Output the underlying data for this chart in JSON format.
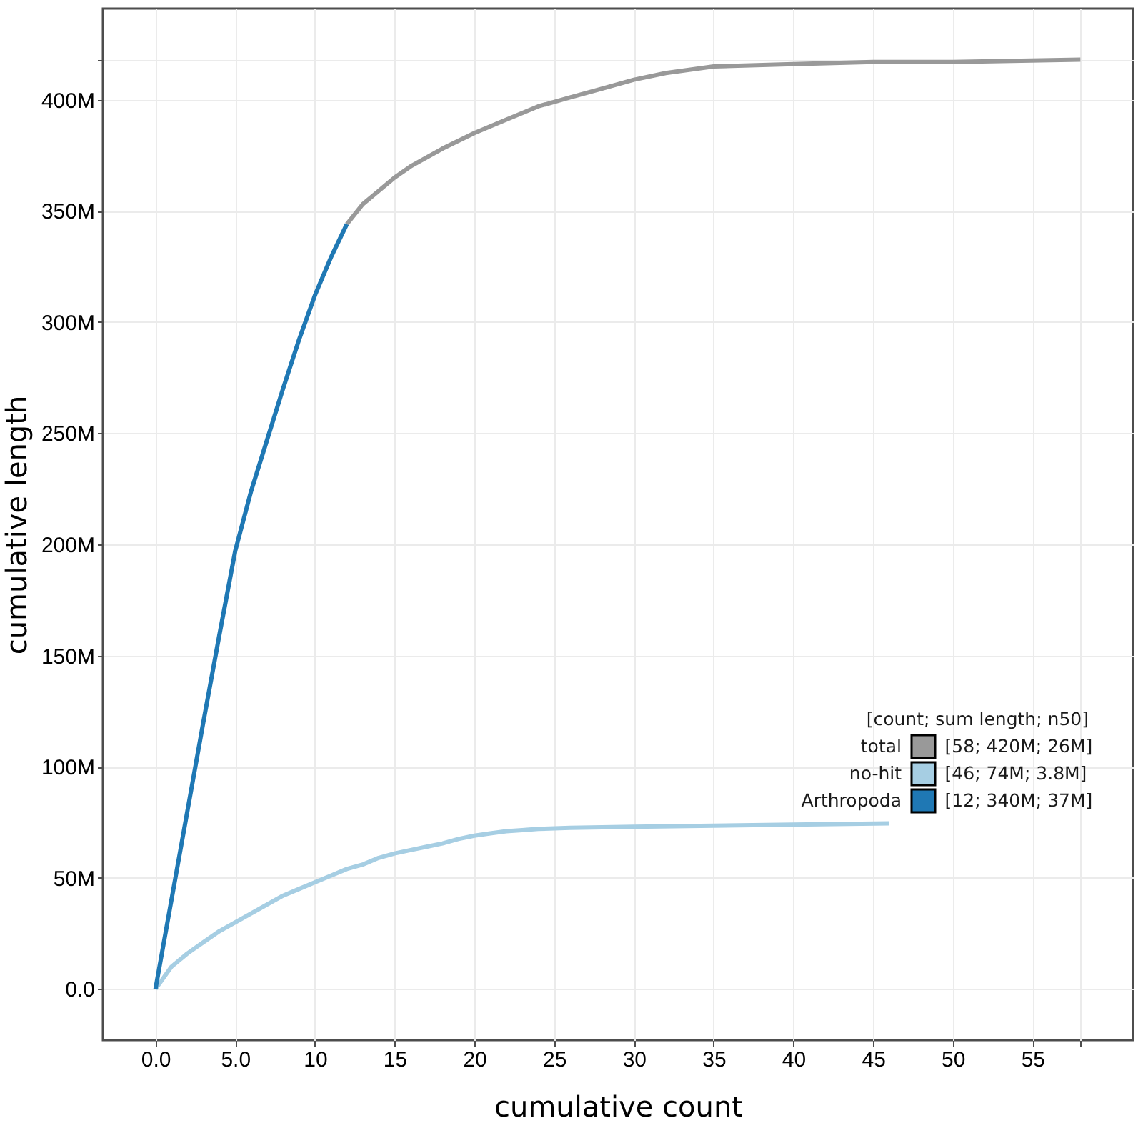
{
  "chart_data": {
    "type": "line",
    "xlabel": "cumulative count",
    "ylabel": "cumulative length",
    "legend_title": "[count; sum length; n50]",
    "annotations": [
      "[58; 420M; 26M]",
      "[46; 74M; 3.8M]",
      "[12; 340M; 37M]"
    ],
    "series": [
      {
        "name": "total",
        "color": "#999999",
        "x": [
          12,
          13,
          14,
          15,
          16,
          18,
          20,
          22,
          24,
          26,
          28,
          30,
          32,
          35,
          40,
          45,
          50,
          58
        ],
        "values": [
          344,
          353,
          359,
          365,
          370,
          378,
          385,
          391,
          397,
          401,
          405,
          409,
          412,
          415,
          416,
          417,
          417,
          418
        ]
      },
      {
        "name": "no-hit",
        "color": "#a6cee3",
        "x": [
          0,
          1,
          2,
          3,
          4,
          5,
          6,
          7,
          8,
          9,
          10,
          11,
          12,
          13,
          14,
          15,
          16,
          17,
          18,
          19,
          20,
          21,
          22,
          23,
          24,
          26,
          30,
          35,
          40,
          46
        ],
        "values": [
          0,
          10,
          16,
          21,
          26,
          30,
          34,
          38,
          42,
          45,
          48,
          51,
          54,
          56,
          59,
          61,
          62.5,
          64,
          65.5,
          67.5,
          69,
          70,
          71,
          71.5,
          72,
          72.5,
          73,
          73.5,
          74,
          74.5
        ]
      },
      {
        "name": "Arthropoda",
        "color": "#1f78b4",
        "x": [
          0,
          1,
          2,
          3,
          4,
          5,
          6,
          7,
          8,
          9,
          10,
          11,
          12
        ],
        "values": [
          0,
          40,
          80,
          120,
          159,
          197,
          224,
          247,
          270,
          292,
          312,
          329,
          344
        ]
      }
    ],
    "xlim": [
      -3.3,
      61.3
    ],
    "ylim": [
      -23,
      441
    ],
    "xticks": [
      {
        "value": 0,
        "label": "0.0"
      },
      {
        "value": 5,
        "label": "5.0"
      },
      10,
      15,
      20,
      25,
      30,
      35,
      40,
      45,
      50,
      55,
      {
        "value": 58,
        "label": null
      }
    ],
    "yticks": [
      {
        "value": 0,
        "label": "0.0"
      },
      {
        "value": 50,
        "label": "50M"
      },
      {
        "value": 100,
        "label": "100M"
      },
      {
        "value": 150,
        "label": "150M"
      },
      {
        "value": 200,
        "label": "200M"
      },
      {
        "value": 250,
        "label": "250M"
      },
      {
        "value": 300,
        "label": "300M"
      },
      {
        "value": 350,
        "label": "350M"
      },
      {
        "value": 400,
        "label": "400M"
      },
      {
        "value": 418,
        "label": null
      }
    ],
    "grid": true,
    "legend": "right"
  }
}
